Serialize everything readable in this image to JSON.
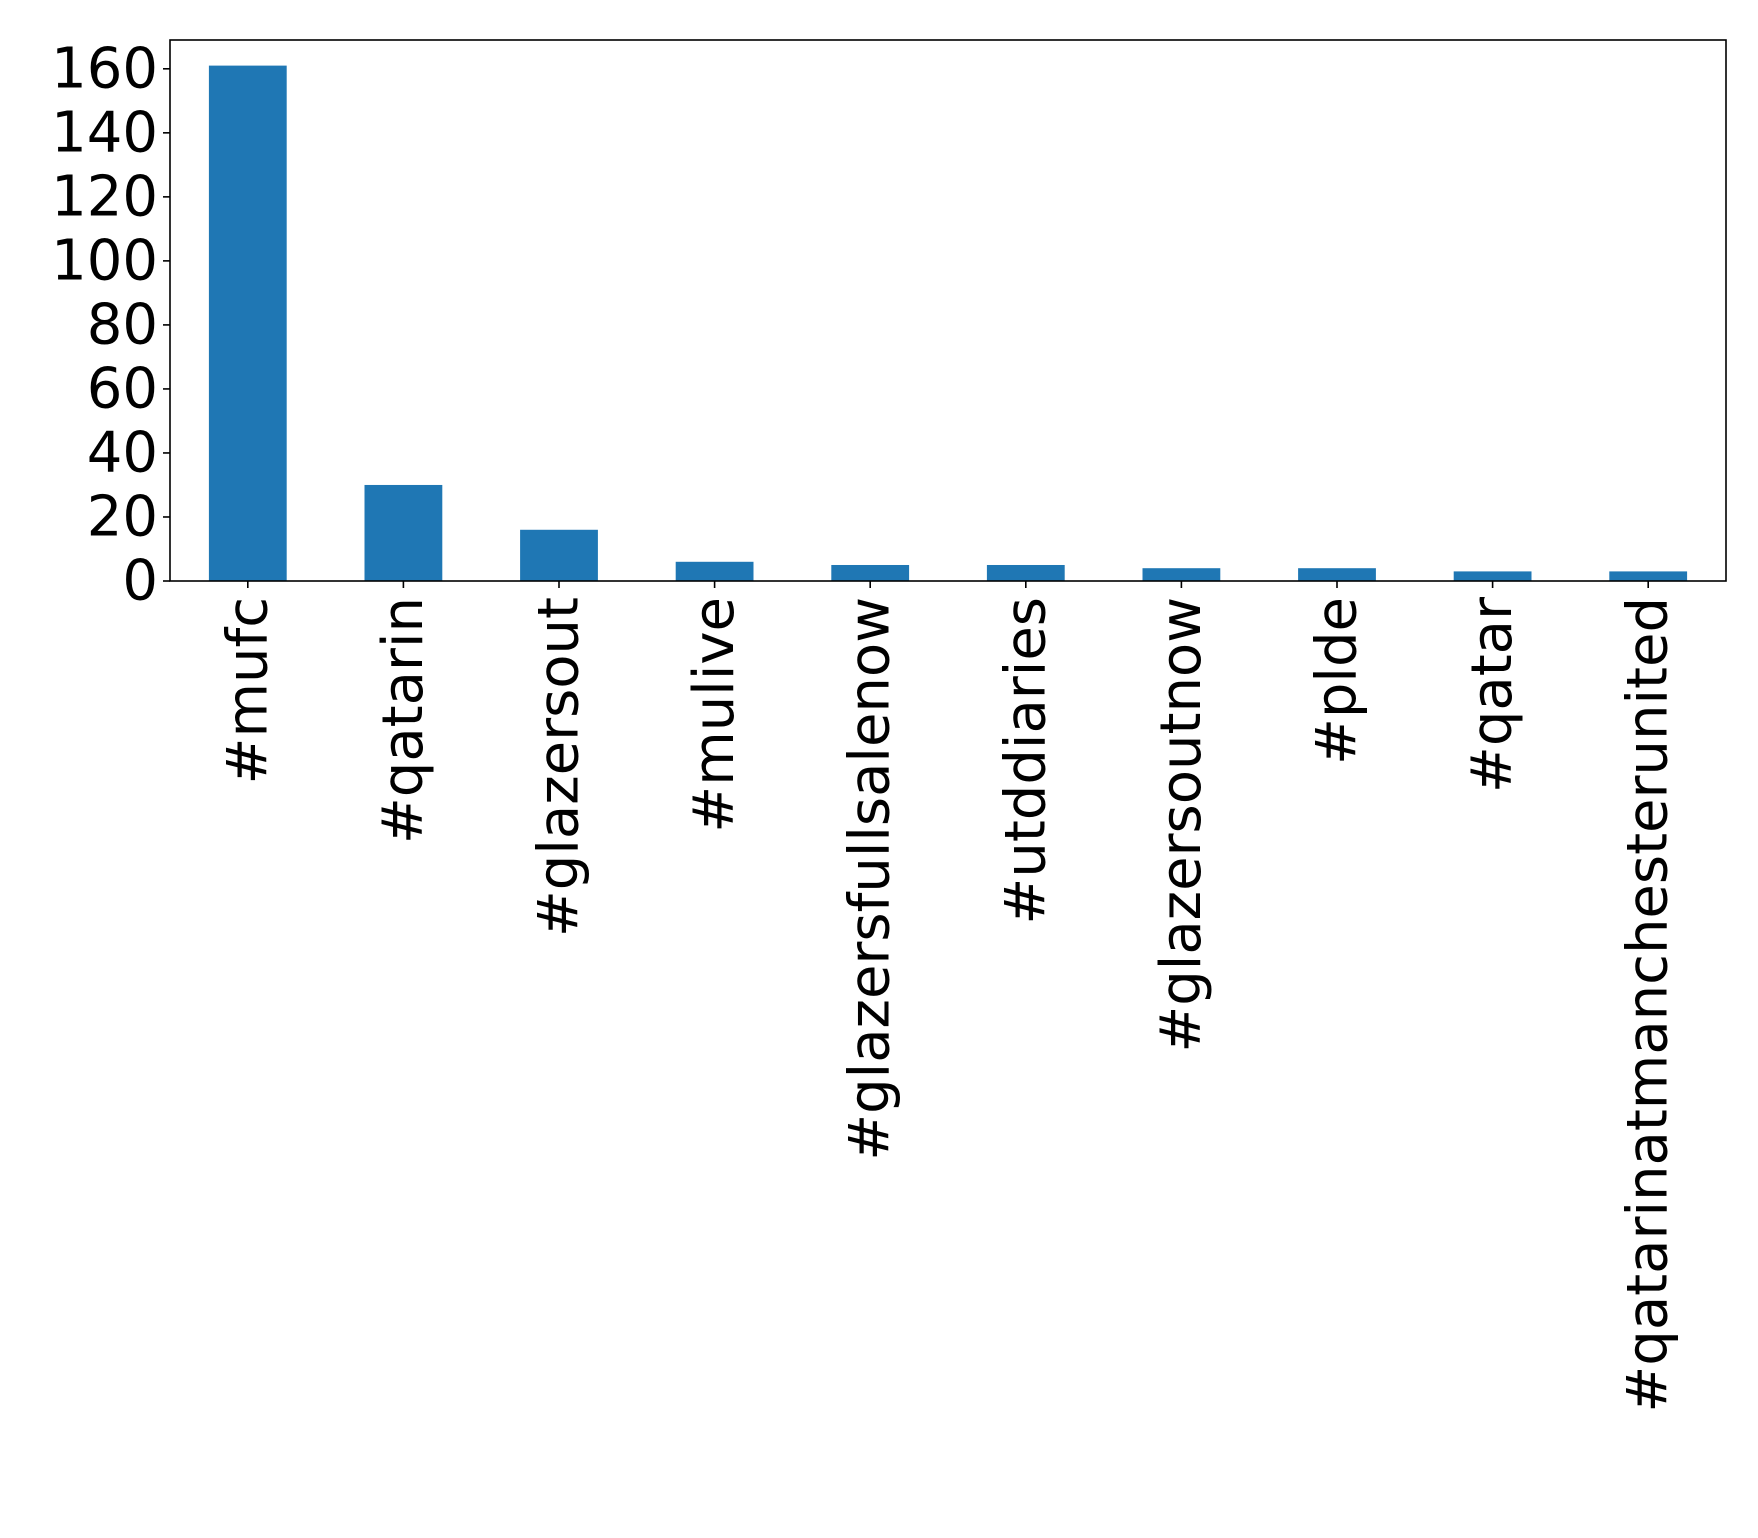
{
  "chart_data": {
    "type": "bar",
    "title": "",
    "xlabel": "",
    "ylabel": "",
    "categories": [
      "#mufc",
      "#qatarin",
      "#glazersout",
      "#mulive",
      "#glazersfullsalenow",
      "#utddiaries",
      "#glazersoutnow",
      "#plde",
      "#qatar",
      "#qatarinatmanchesterunited"
    ],
    "values": [
      161,
      30,
      16,
      6,
      5,
      5,
      4,
      4,
      3,
      3
    ],
    "ylim": [
      0,
      169
    ],
    "yticks": [
      0,
      20,
      40,
      60,
      80,
      100,
      120,
      140,
      160
    ],
    "bar_color": "#1f77b4",
    "grid": false,
    "legend": "none"
  }
}
